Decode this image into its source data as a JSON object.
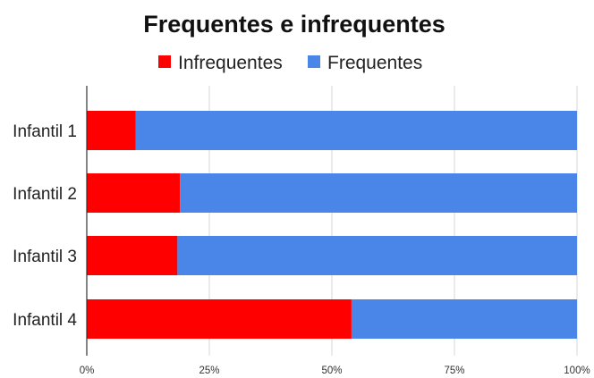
{
  "chart_data": {
    "type": "bar",
    "orientation": "horizontal",
    "stacked": true,
    "percent_stacked": true,
    "title": "Frequentes e infrequentes",
    "categories": [
      "Infantil 1",
      "Infantil 2",
      "Infantil 3",
      "Infantil 4"
    ],
    "series": [
      {
        "name": "Infrequentes",
        "color": "#ff0000",
        "values": [
          10,
          19,
          18.5,
          54
        ]
      },
      {
        "name": "Frequentes",
        "color": "#4a86e8",
        "values": [
          90,
          81,
          81.5,
          46
        ]
      }
    ],
    "xlim": [
      0,
      100
    ],
    "x_ticks": [
      "0%",
      "25%",
      "50%",
      "75%",
      "100%"
    ],
    "grid": true,
    "legend_position": "top"
  }
}
